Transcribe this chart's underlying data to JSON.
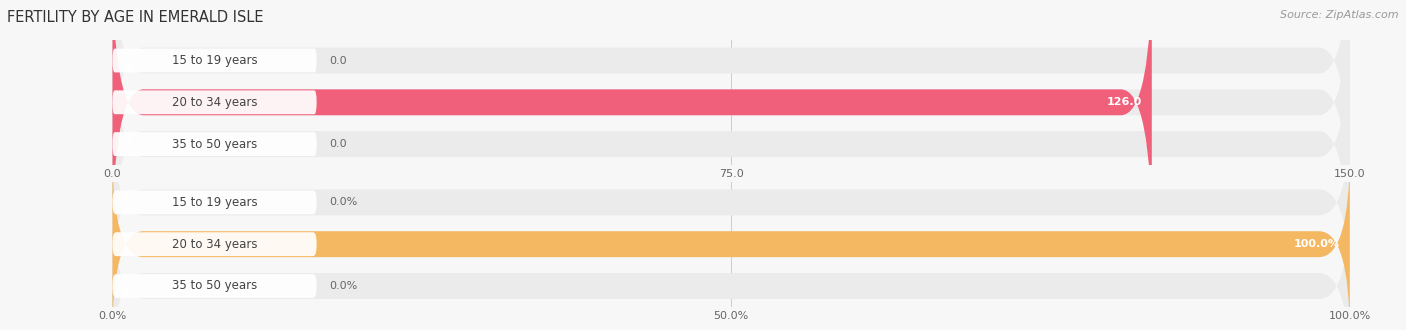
{
  "title": "FERTILITY BY AGE IN EMERALD ISLE",
  "source": "Source: ZipAtlas.com",
  "top_chart": {
    "categories": [
      "15 to 19 years",
      "20 to 34 years",
      "35 to 50 years"
    ],
    "values": [
      0.0,
      126.0,
      0.0
    ],
    "xlim": [
      0,
      150.0
    ],
    "xticks": [
      0.0,
      75.0,
      150.0
    ],
    "xticklabels": [
      "0.0",
      "75.0",
      "150.0"
    ],
    "bar_color": "#f0607a",
    "bar_bg_color": "#ebebeb",
    "label_pill_color": "#ffffff",
    "value_labels": [
      "0.0",
      "126.0",
      "0.0"
    ]
  },
  "bottom_chart": {
    "categories": [
      "15 to 19 years",
      "20 to 34 years",
      "35 to 50 years"
    ],
    "values": [
      0.0,
      100.0,
      0.0
    ],
    "xlim": [
      0,
      100.0
    ],
    "xticks": [
      0.0,
      50.0,
      100.0
    ],
    "xticklabels": [
      "0.0%",
      "50.0%",
      "100.0%"
    ],
    "bar_color": "#f5b862",
    "bar_bg_color": "#ebebeb",
    "label_pill_color": "#ffffff",
    "value_labels": [
      "0.0%",
      "100.0%",
      "0.0%"
    ]
  },
  "label_color": "#444444",
  "value_text_color_inside": "#ffffff",
  "value_text_color_outside": "#666666",
  "background_color": "#f7f7f7",
  "title_fontsize": 10.5,
  "source_fontsize": 8,
  "label_fontsize": 8.5,
  "tick_fontsize": 8,
  "value_fontsize": 8
}
